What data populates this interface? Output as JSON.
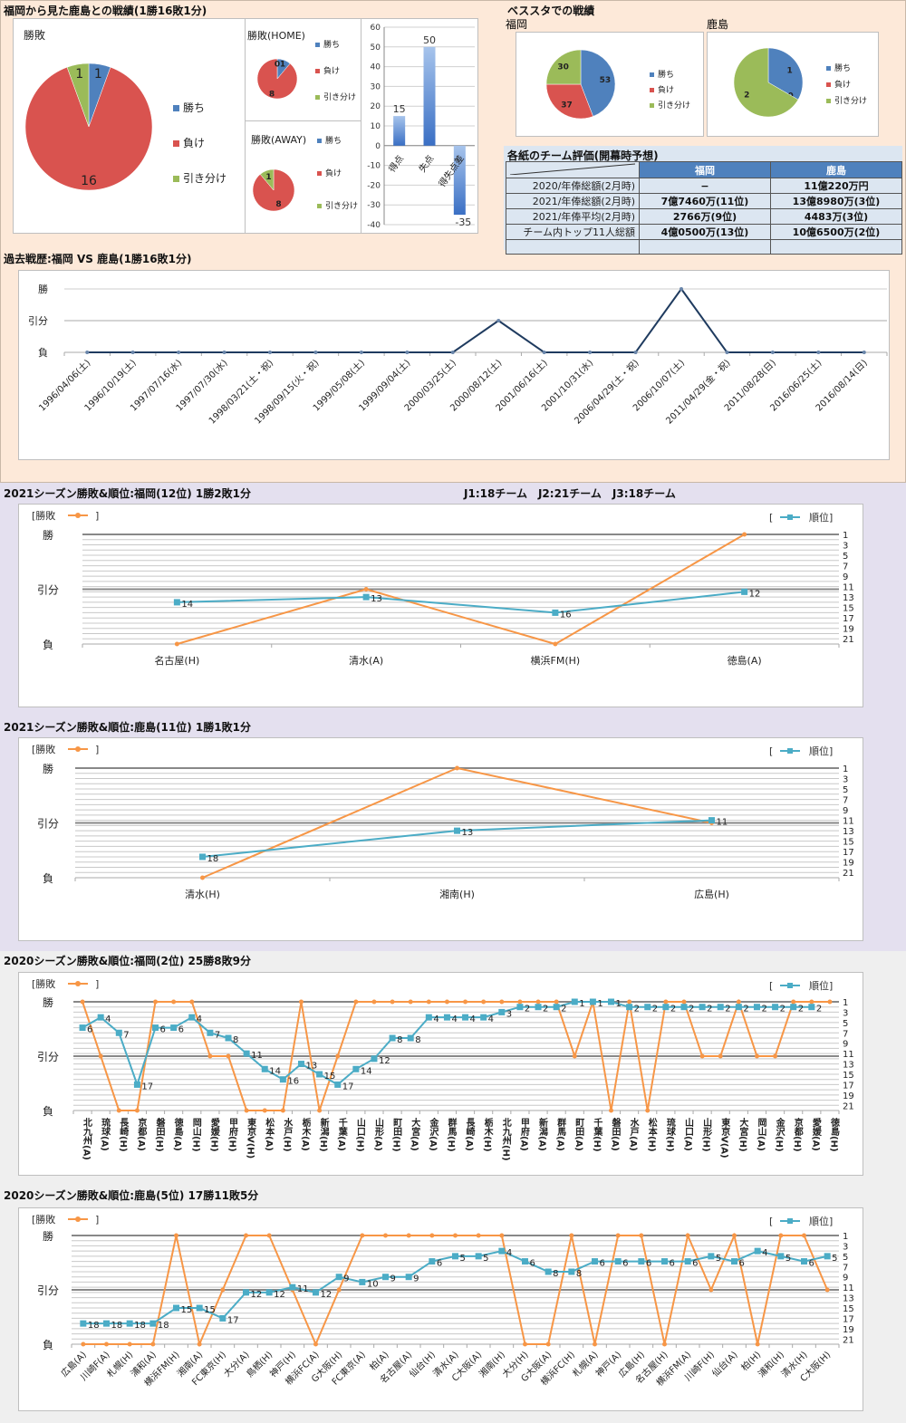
{
  "colors": {
    "win": "#4f81bd",
    "loss": "#d9534f",
    "draw": "#9bbb59",
    "result_line": "#f79646",
    "rank_line": "#4bacc6",
    "history_line": "#1f3b5f",
    "table_header": "#4f81bd"
  },
  "sections": {
    "overview_title": "福岡から見た鹿島との戦績(1勝16敗1分)",
    "besu_title": "ベススタでの戦績",
    "eval_title": "各紙のチーム評価(開幕時予想)",
    "history_title": "過去戦歴:福岡 VS 鹿島(1勝16敗1分)",
    "fuk2021_title": "2021シーズン勝敗&順位:福岡(12位) 1勝2敗1分",
    "league_note": "J1:18チーム　J2:21チーム　J3:18チーム",
    "kas2021_title": "2021シーズン勝敗&順位:鹿島(11位) 1勝1敗1分",
    "fuk2020_title": "2020シーズン勝敗&順位:福岡(2位) 25勝8敗9分",
    "kas2020_title": "2020シーズン勝敗&順位:鹿島(5位) 17勝11敗5分"
  },
  "legend_labels": {
    "win": "勝ち",
    "loss": "負け",
    "draw": "引き分け",
    "result": "[勝敗",
    "result_close": "]",
    "rank_open": "[",
    "rank": "順位]"
  },
  "result_axis": {
    "win": "勝",
    "draw": "引分",
    "loss": "負"
  },
  "eval_table": {
    "headers": [
      "",
      "福岡",
      "鹿島"
    ],
    "rows": [
      [
        "2020/年俸総額(2月時)",
        "−",
        "11億220万円"
      ],
      [
        "2021/年俸総額(2月時)",
        "7億7460万(11位)",
        "13億8980万(3位)"
      ],
      [
        "2021/年俸平均(2月時)",
        "2766万(9位)",
        "4483万(3位)"
      ],
      [
        "チーム内トップ11人総額",
        "4億0500万(13位)",
        "10億6500万(2位)"
      ],
      [
        "",
        "",
        ""
      ]
    ]
  },
  "chart_data": [
    {
      "id": "overall",
      "type": "pie",
      "title": "勝敗",
      "labels": [
        "勝ち",
        "負け",
        "引き分け"
      ],
      "values": [
        1,
        16,
        1
      ],
      "legend": "right"
    },
    {
      "id": "home",
      "type": "pie",
      "title": "勝敗(HOME)",
      "labels": [
        "勝ち",
        "負け",
        "引き分け"
      ],
      "values": [
        1,
        8,
        0
      ],
      "legend": "right"
    },
    {
      "id": "away",
      "type": "pie",
      "title": "勝敗(AWAY)",
      "labels": [
        "勝ち",
        "負け",
        "引き分け"
      ],
      "values": [
        0,
        8,
        1
      ],
      "legend": "right"
    },
    {
      "id": "goals",
      "type": "bar",
      "categories": [
        "得点",
        "失点",
        "得失点差"
      ],
      "values": [
        15,
        50,
        -35
      ],
      "ylim": [
        -40,
        60
      ],
      "yticks": [
        60,
        50,
        40,
        30,
        20,
        10,
        0,
        -10,
        -20,
        -30,
        -40
      ]
    },
    {
      "id": "besu_fukuoka",
      "type": "pie",
      "title": "福岡",
      "labels": [
        "勝ち",
        "負け",
        "引き分け"
      ],
      "values": [
        53,
        37,
        30
      ],
      "legend": "right"
    },
    {
      "id": "besu_kashima",
      "type": "pie",
      "title": "鹿島",
      "labels": [
        "勝ち",
        "負け",
        "引き分け"
      ],
      "values": [
        1,
        0,
        2
      ],
      "legend": "right"
    },
    {
      "id": "history",
      "type": "line",
      "x": [
        "1996/04/06(土)",
        "1996/10/19(土)",
        "1997/07/16(水)",
        "1997/07/30(水)",
        "1998/03/21(土・祝)",
        "1998/09/15(火・祝)",
        "1999/05/08(土)",
        "1999/09/04(土)",
        "2000/03/25(土)",
        "2000/08/12(土)",
        "2001/06/16(土)",
        "2001/10/31(水)",
        "2006/04/29(土・祝)",
        "2006/10/07(土)",
        "2011/04/29(金・祝)",
        "2011/08/28(日)",
        "2016/06/25(土)",
        "2016/08/14(日)"
      ],
      "values": [
        0,
        0,
        0,
        0,
        0,
        0,
        0,
        0,
        0,
        0.5,
        0,
        0,
        0,
        1,
        0,
        0,
        0,
        0
      ],
      "ylabels": [
        "負",
        "引分",
        "勝"
      ]
    },
    {
      "id": "fuk2021",
      "type": "line",
      "x": [
        "名古屋(H)",
        "清水(A)",
        "横浜FM(H)",
        "徳島(A)"
      ],
      "series": [
        {
          "name": "勝敗",
          "values": [
            0,
            0.5,
            0,
            1
          ]
        },
        {
          "name": "順位",
          "values": [
            14,
            13,
            16,
            12
          ]
        }
      ],
      "rank_ticks": [
        1,
        3,
        5,
        7,
        9,
        11,
        13,
        15,
        17,
        19,
        21
      ]
    },
    {
      "id": "kas2021",
      "type": "line",
      "x": [
        "清水(H)",
        "湘南(H)",
        "広島(H)"
      ],
      "series": [
        {
          "name": "勝敗",
          "values": [
            0,
            1,
            0.5
          ]
        },
        {
          "name": "順位",
          "values": [
            18,
            13,
            11
          ]
        }
      ],
      "rank_ticks": [
        1,
        3,
        5,
        7,
        9,
        11,
        13,
        15,
        17,
        19,
        21
      ]
    },
    {
      "id": "fuk2020",
      "type": "line",
      "x": [
        "北九州(A)",
        "琉球(A)",
        "長崎(H)",
        "京都(A)",
        "磐田(H)",
        "徳島(A)",
        "岡山(H)",
        "愛媛(H)",
        "甲府(H)",
        "東京V(H)",
        "松本(A)",
        "水戸(H)",
        "栃木(A)",
        "新潟(H)",
        "千葉(A)",
        "山口(H)",
        "山形(A)",
        "町田(H)",
        "大宮(A)",
        "金沢(A)",
        "群馬(H)",
        "長崎(A)",
        "栃木(H)",
        "北九州(H)",
        "甲府(A)",
        "新潟(A)",
        "群馬(A)",
        "町田(A)",
        "千葉(H)",
        "磐田(A)",
        "水戸(A)",
        "松本(H)",
        "琉球(H)",
        "山口(A)",
        "山形(H)",
        "東京V(A)",
        "大宮(H)",
        "岡山(A)",
        "金沢(H)",
        "京都(H)",
        "愛媛(A)",
        "徳島(H)"
      ],
      "series": [
        {
          "name": "勝敗",
          "values": [
            1,
            0.5,
            0,
            0,
            1,
            1,
            1,
            0.5,
            0.5,
            0,
            0,
            0,
            1,
            0,
            0.5,
            1,
            1,
            1,
            1,
            1,
            1,
            1,
            1,
            1,
            1,
            1,
            1,
            0.5,
            1,
            0,
            1,
            0,
            1,
            1,
            0.5,
            0.5,
            1,
            0.5,
            0.5,
            1,
            1,
            1
          ]
        },
        {
          "name": "順位",
          "values": [
            6,
            4,
            7,
            17,
            6,
            6,
            4,
            7,
            8,
            11,
            14,
            16,
            13,
            15,
            17,
            14,
            12,
            8,
            8,
            4,
            4,
            4,
            4,
            3,
            2,
            2,
            2,
            1,
            1,
            1,
            2,
            2,
            2,
            2,
            2,
            2,
            2,
            2,
            2,
            2,
            2,
            null
          ]
        }
      ],
      "rank_ticks": [
        1,
        3,
        5,
        7,
        9,
        11,
        13,
        15,
        17,
        19,
        21
      ],
      "vertical_labels": true
    },
    {
      "id": "kas2020",
      "type": "line",
      "x": [
        "広島(A)",
        "川崎F(A)",
        "札幌(H)",
        "浦和(A)",
        "横浜FM(H)",
        "湘南(A)",
        "FC東京(H)",
        "大分(A)",
        "鳥栖(H)",
        "神戸(H)",
        "横浜FC(A)",
        "G大阪(H)",
        "FC東京(A)",
        "柏(A)",
        "名古屋(A)",
        "仙台(H)",
        "清水(A)",
        "C大阪(A)",
        "湘南(H)",
        "大分(H)",
        "G大阪(A)",
        "横浜FC(H)",
        "札幌(A)",
        "神戸(A)",
        "広島(H)",
        "名古屋(H)",
        "横浜FM(A)",
        "川崎F(H)",
        "仙台(A)",
        "柏(H)",
        "浦和(H)",
        "清水(H)",
        "C大阪(H)"
      ],
      "series": [
        {
          "name": "勝敗",
          "values": [
            0,
            0,
            0,
            0,
            1,
            0,
            0.5,
            1,
            1,
            0.5,
            0,
            0.5,
            1,
            1,
            1,
            1,
            1,
            1,
            1,
            0,
            0,
            1,
            0,
            1,
            1,
            0,
            1,
            0.5,
            1,
            0,
            1,
            1,
            0.5
          ]
        },
        {
          "name": "順位",
          "values": [
            18,
            18,
            18,
            18,
            15,
            15,
            17,
            12,
            12,
            11,
            12,
            9,
            10,
            9,
            9,
            6,
            5,
            5,
            4,
            6,
            8,
            8,
            6,
            6,
            6,
            6,
            6,
            5,
            6,
            4,
            5,
            6,
            5
          ]
        }
      ],
      "rank_ticks": [
        1,
        3,
        5,
        7,
        9,
        11,
        13,
        15,
        17,
        19,
        21
      ],
      "vertical_labels": false
    }
  ]
}
